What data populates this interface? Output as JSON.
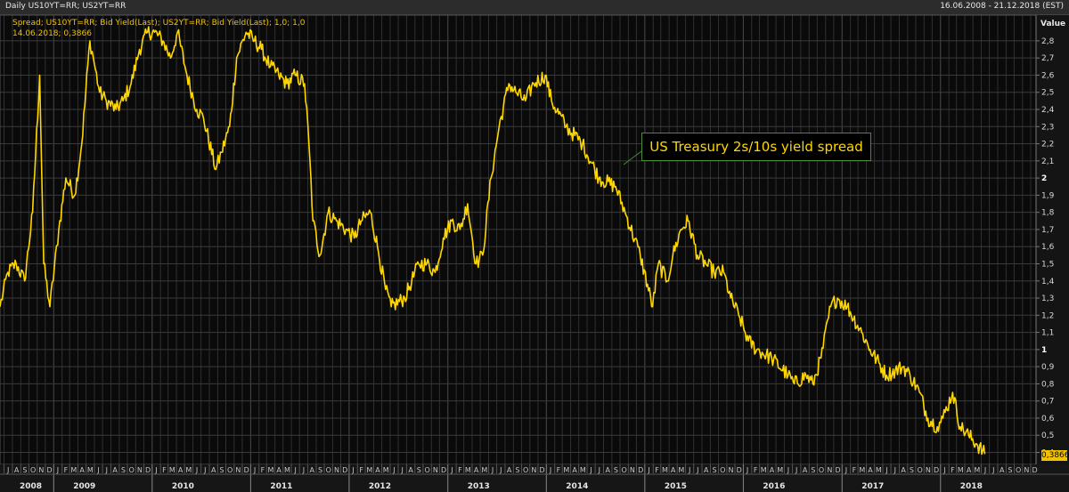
{
  "header": {
    "title": "Daily US10YT=RR; US2YT=RR",
    "date_range": "16.06.2008 - 21.12.2018 (EST)"
  },
  "legend": {
    "line1": "Spread; US10YT=RR; Bid Yield(Last); US2YT=RR; Bid Yield(Last);  1,0; 1,0",
    "line2": "14.06.2018; 0,3866"
  },
  "annotation": {
    "text": "US Treasury 2s/10s yield spread"
  },
  "colors": {
    "background": "#0a0a0a",
    "grid": "#3a3a3a",
    "line": "#ffd700",
    "annotation_border": "#4a8a3a"
  },
  "chart_data": {
    "type": "line",
    "title": "",
    "xlabel": "",
    "ylabel": "Value",
    "ylim": [
      0.33,
      2.95
    ],
    "xlim": [
      "2008-06-16",
      "2018-12-21"
    ],
    "grid": true,
    "last_value_label": "0,3866",
    "y_ticks": [
      "0,4",
      "0,5",
      "0,6",
      "0,7",
      "0,8",
      "0,9",
      "1",
      "1,1",
      "1,2",
      "1,3",
      "1,4",
      "1,5",
      "1,6",
      "1,7",
      "1,8",
      "1,9",
      "2",
      "2,1",
      "2,2",
      "2,3",
      "2,4",
      "2,5",
      "2,6",
      "2,7",
      "2,8"
    ],
    "x_years": [
      "2008",
      "2009",
      "2010",
      "2011",
      "2012",
      "2013",
      "2014",
      "2015",
      "2016",
      "2017",
      "2018"
    ],
    "x_months": [
      "J",
      "A",
      "S",
      "O",
      "N",
      "D",
      "J",
      "F",
      "M",
      "A",
      "M",
      "J",
      "J",
      "A",
      "S",
      "O",
      "N",
      "D",
      "J",
      "F",
      "M",
      "A",
      "M",
      "J",
      "J",
      "A",
      "S",
      "O",
      "N",
      "D",
      "J",
      "F",
      "M",
      "A",
      "M",
      "J",
      "J",
      "A",
      "S",
      "O",
      "N",
      "D",
      "J",
      "F",
      "M",
      "A",
      "M",
      "J",
      "J",
      "A",
      "S",
      "O",
      "N",
      "D",
      "J",
      "F",
      "M",
      "A",
      "M",
      "J",
      "J",
      "A",
      "S",
      "O",
      "N",
      "D",
      "J",
      "F",
      "M",
      "A",
      "M",
      "J",
      "J",
      "A",
      "S",
      "O",
      "N",
      "D",
      "J",
      "F",
      "M",
      "A",
      "M",
      "J",
      "J",
      "A",
      "S",
      "O",
      "N",
      "D",
      "J",
      "F",
      "M",
      "A",
      "M",
      "J",
      "J",
      "A",
      "S",
      "O",
      "N",
      "D",
      "J",
      "F",
      "M",
      "A",
      "M",
      "J",
      "J",
      "A",
      "S",
      "O",
      "N",
      "D",
      "J",
      "F",
      "M",
      "A",
      "M",
      "J",
      "J",
      "A",
      "S",
      "O",
      "N",
      "D"
    ],
    "series": [
      {
        "x": [
          "2008-06-16",
          "2008-07-15",
          "2008-08-15",
          "2008-09-15",
          "2008-10-15",
          "2008-11-10",
          "2008-11-25",
          "2008-12-18",
          "2009-01-20",
          "2009-02-15",
          "2009-03-20",
          "2009-04-15",
          "2009-05-15",
          "2009-05-28",
          "2009-06-20",
          "2009-07-15",
          "2009-08-20",
          "2009-09-15",
          "2009-10-15",
          "2009-11-15",
          "2009-12-15",
          "2010-01-10",
          "2010-02-10",
          "2010-03-10",
          "2010-04-05",
          "2010-05-10",
          "2010-06-15",
          "2010-07-10",
          "2010-08-25",
          "2010-09-15",
          "2010-10-15",
          "2010-11-10",
          "2010-12-15",
          "2011-01-15",
          "2011-02-10",
          "2011-03-15",
          "2011-04-15",
          "2011-05-15",
          "2011-06-15",
          "2011-07-20",
          "2011-08-05",
          "2011-08-20",
          "2011-09-15",
          "2011-10-15",
          "2011-11-15",
          "2011-12-20",
          "2012-01-20",
          "2012-02-15",
          "2012-03-20",
          "2012-04-15",
          "2012-05-15",
          "2012-06-05",
          "2012-07-25",
          "2012-08-20",
          "2012-09-15",
          "2012-10-15",
          "2012-11-15",
          "2012-12-15",
          "2013-01-15",
          "2013-02-15",
          "2013-03-15",
          "2013-04-15",
          "2013-05-10",
          "2013-06-10",
          "2013-07-10",
          "2013-08-15",
          "2013-09-10",
          "2013-10-15",
          "2013-11-15",
          "2013-12-28",
          "2014-01-20",
          "2014-03-15",
          "2014-05-15",
          "2014-07-15",
          "2014-09-15",
          "2014-10-20",
          "2014-12-15",
          "2015-01-30",
          "2015-02-20",
          "2015-03-25",
          "2015-04-15",
          "2015-05-15",
          "2015-06-10",
          "2015-07-15",
          "2015-08-15",
          "2015-09-15",
          "2015-10-20",
          "2015-11-15",
          "2015-12-15",
          "2016-01-20",
          "2016-02-20",
          "2016-04-15",
          "2016-06-15",
          "2016-07-08",
          "2016-08-20",
          "2016-09-15",
          "2016-10-15",
          "2016-11-20",
          "2016-12-15",
          "2017-01-20",
          "2017-03-15",
          "2017-04-15",
          "2017-06-15",
          "2017-08-15",
          "2017-09-10",
          "2017-10-15",
          "2017-11-15",
          "2017-12-20",
          "2018-01-10",
          "2018-02-15",
          "2018-03-15",
          "2018-04-15",
          "2018-05-15",
          "2018-06-14"
        ],
        "y": [
          1.25,
          1.45,
          1.5,
          1.4,
          1.8,
          2.6,
          1.5,
          1.25,
          1.7,
          2.0,
          1.9,
          2.2,
          2.8,
          2.7,
          2.5,
          2.45,
          2.4,
          2.45,
          2.55,
          2.75,
          2.85,
          2.85,
          2.8,
          2.7,
          2.85,
          2.6,
          2.4,
          2.35,
          2.05,
          2.15,
          2.3,
          2.7,
          2.85,
          2.8,
          2.75,
          2.65,
          2.6,
          2.55,
          2.6,
          2.55,
          2.2,
          1.75,
          1.55,
          1.8,
          1.75,
          1.7,
          1.65,
          1.75,
          1.8,
          1.6,
          1.35,
          1.25,
          1.3,
          1.4,
          1.5,
          1.5,
          1.45,
          1.65,
          1.75,
          1.7,
          1.85,
          1.5,
          1.55,
          2.0,
          2.3,
          2.55,
          2.5,
          2.45,
          2.55,
          2.6,
          2.45,
          2.3,
          2.2,
          2.0,
          1.95,
          1.8,
          1.55,
          1.25,
          1.5,
          1.4,
          1.55,
          1.7,
          1.75,
          1.55,
          1.5,
          1.45,
          1.45,
          1.3,
          1.2,
          1.05,
          1.0,
          0.95,
          0.85,
          0.8,
          0.85,
          0.8,
          0.95,
          1.25,
          1.3,
          1.25,
          1.1,
          1.0,
          0.85,
          0.9,
          0.85,
          0.75,
          0.6,
          0.55,
          0.6,
          0.75,
          0.55,
          0.5,
          0.45,
          0.39
        ]
      }
    ]
  }
}
